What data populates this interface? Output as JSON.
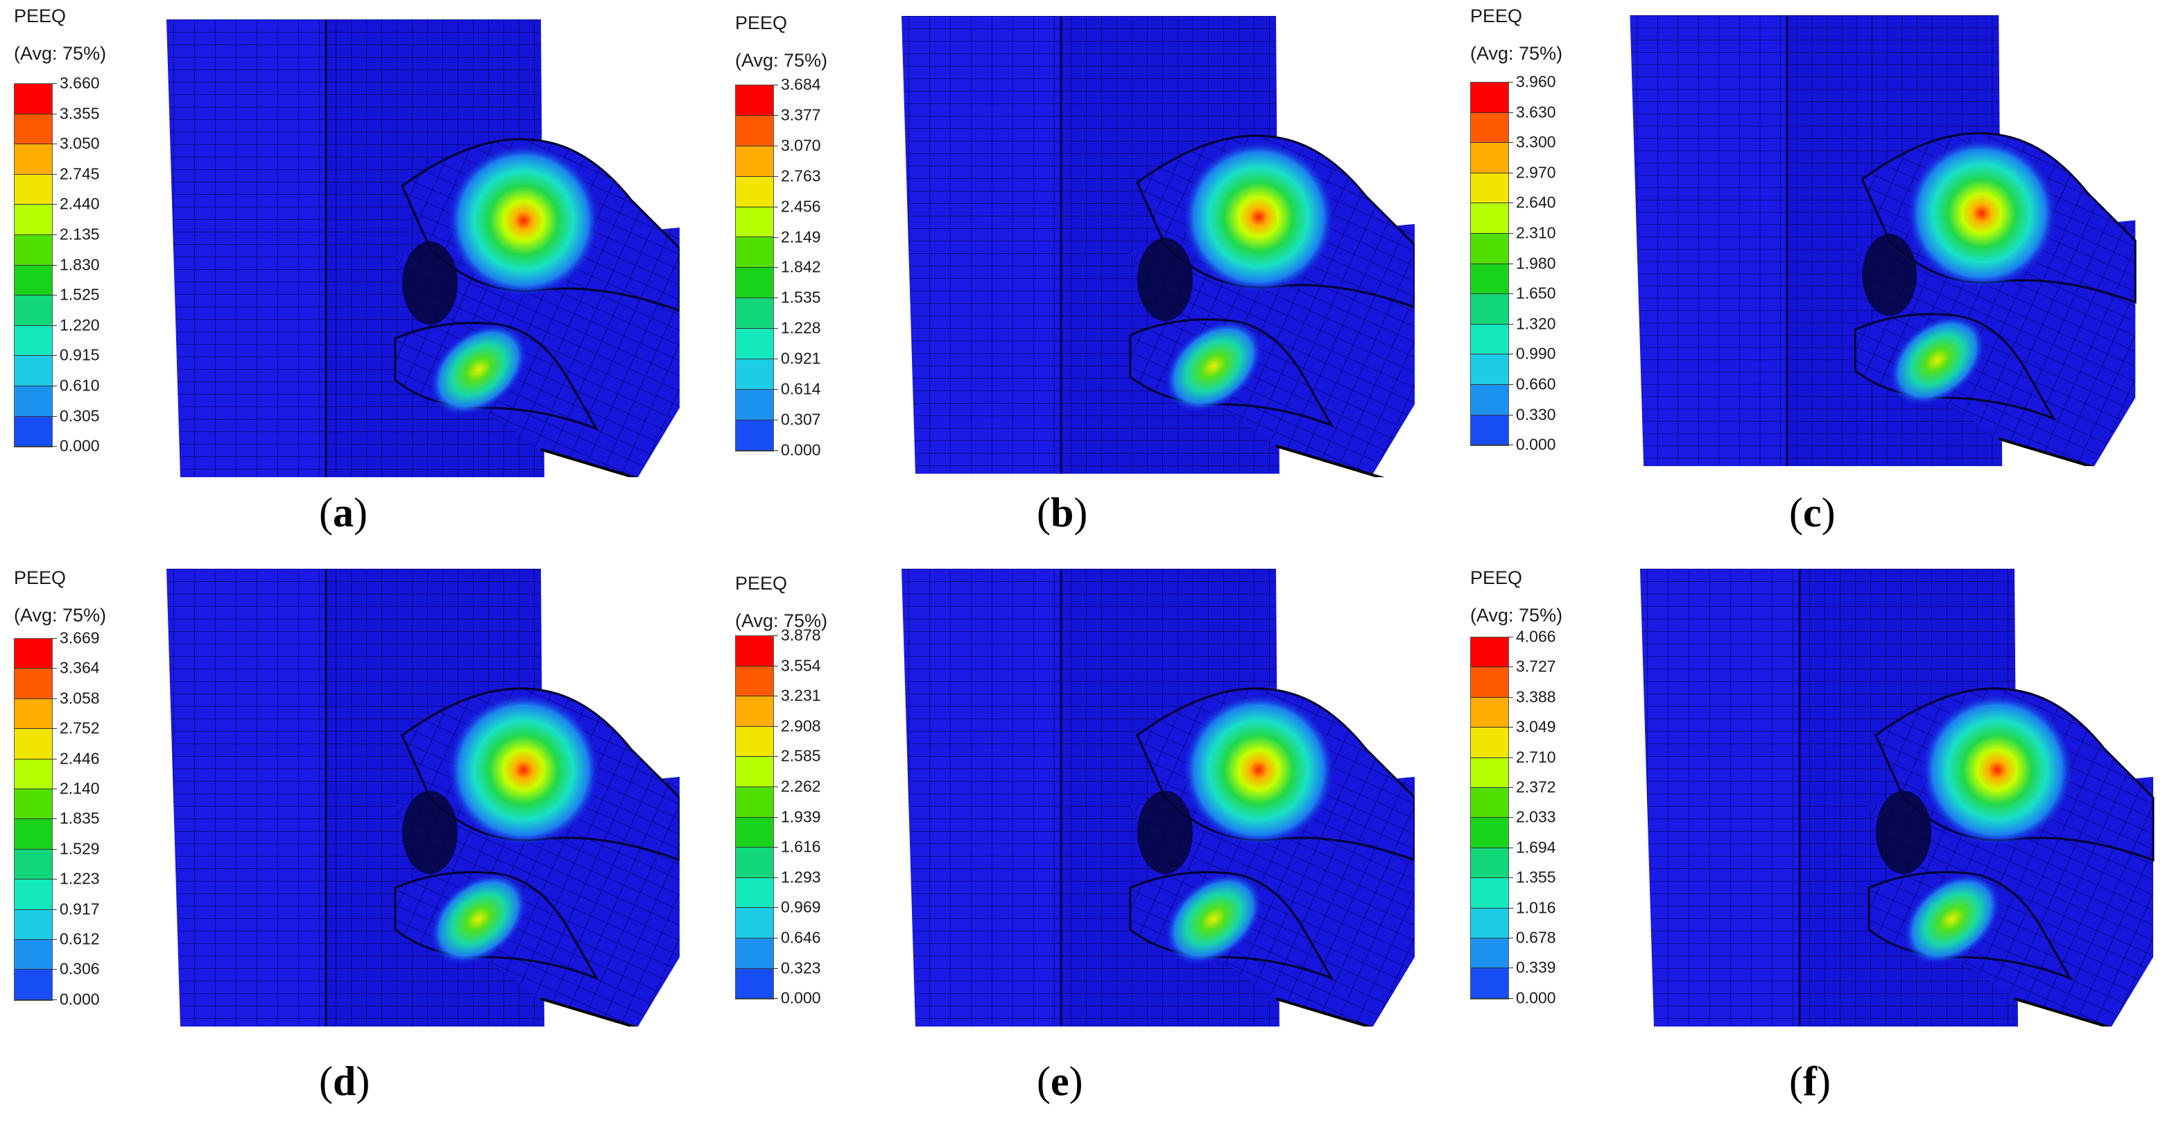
{
  "legend_title_line1": "PEEQ",
  "legend_title_line2": "(Avg: 75%)",
  "contour_colors": [
    "#ff0000",
    "#ff5a00",
    "#ffae00",
    "#f2e600",
    "#b4ff00",
    "#4fe000",
    "#19d21a",
    "#12d77a",
    "#14e8bd",
    "#1dcde8",
    "#1c92f0",
    "#174df5",
    "#0000ff"
  ],
  "panels": [
    {
      "caption": "a",
      "ticks": [
        "3.660",
        "3.355",
        "3.050",
        "2.745",
        "2.440",
        "2.135",
        "1.830",
        "1.525",
        "1.220",
        "0.915",
        "0.610",
        "0.305",
        "0.000"
      ]
    },
    {
      "caption": "b",
      "ticks": [
        "3.684",
        "3.377",
        "3.070",
        "2.763",
        "2.456",
        "2.149",
        "1.842",
        "1.535",
        "1.228",
        "0.921",
        "0.614",
        "0.307",
        "0.000"
      ]
    },
    {
      "caption": "c",
      "ticks": [
        "3.960",
        "3.630",
        "3.300",
        "2.970",
        "2.640",
        "2.310",
        "1.980",
        "1.650",
        "1.320",
        "0.990",
        "0.660",
        "0.330",
        "0.000"
      ]
    },
    {
      "caption": "d",
      "ticks": [
        "3.669",
        "3.364",
        "3.058",
        "2.752",
        "2.446",
        "2.140",
        "1.835",
        "1.529",
        "1.223",
        "0.917",
        "0.612",
        "0.306",
        "0.000"
      ]
    },
    {
      "caption": "e",
      "ticks": [
        "3.878",
        "3.554",
        "3.231",
        "2.908",
        "2.585",
        "2.262",
        "1.939",
        "1.616",
        "1.293",
        "0.969",
        "0.646",
        "0.323",
        "0.000"
      ]
    },
    {
      "caption": "f",
      "ticks": [
        "4.066",
        "3.727",
        "3.388",
        "3.049",
        "2.710",
        "2.372",
        "2.033",
        "1.694",
        "1.355",
        "1.016",
        "0.678",
        "0.339",
        "0.000"
      ]
    }
  ]
}
